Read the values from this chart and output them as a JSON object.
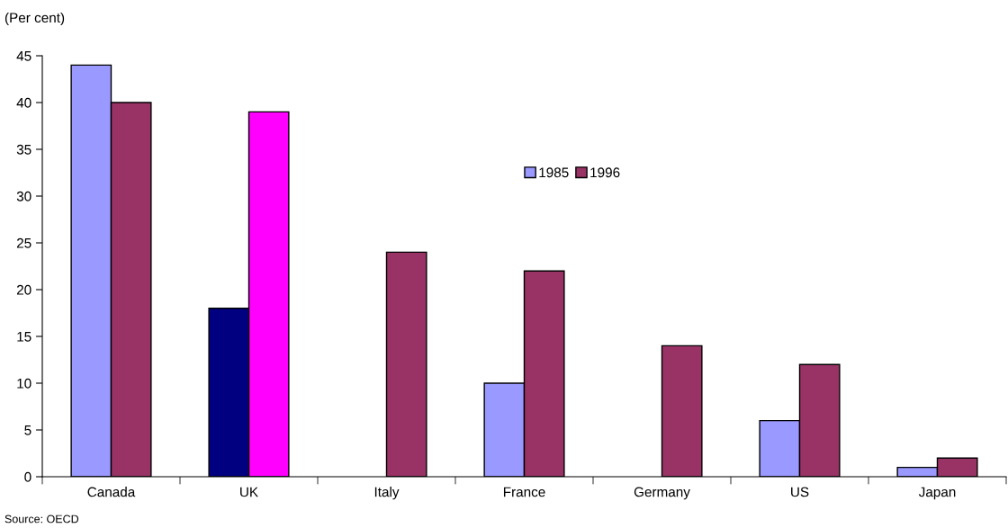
{
  "chart_data": {
    "type": "bar",
    "ylabel": "(Per cent)",
    "categories": [
      "Canada",
      "UK",
      "Italy",
      "France",
      "Germany",
      "US",
      "Japan"
    ],
    "series": [
      {
        "name": "1985",
        "color": "#9999ff",
        "colors": [
          "#9999ff",
          "#000080",
          "#9999ff",
          "#9999ff",
          "#9999ff",
          "#9999ff",
          "#9999ff"
        ],
        "values": [
          44,
          18,
          null,
          10,
          null,
          6,
          1
        ]
      },
      {
        "name": "1996",
        "color": "#993366",
        "colors": [
          "#993366",
          "#ff00ff",
          "#993366",
          "#993366",
          "#993366",
          "#993366",
          "#993366"
        ],
        "values": [
          40,
          39,
          24,
          22,
          14,
          12,
          2
        ]
      }
    ],
    "ylim": [
      0,
      45
    ],
    "yticks": [
      0,
      5,
      10,
      15,
      20,
      25,
      30,
      35,
      40,
      45
    ],
    "grid": false,
    "legend": "center",
    "annotations": [
      "Source: OECD"
    ]
  }
}
